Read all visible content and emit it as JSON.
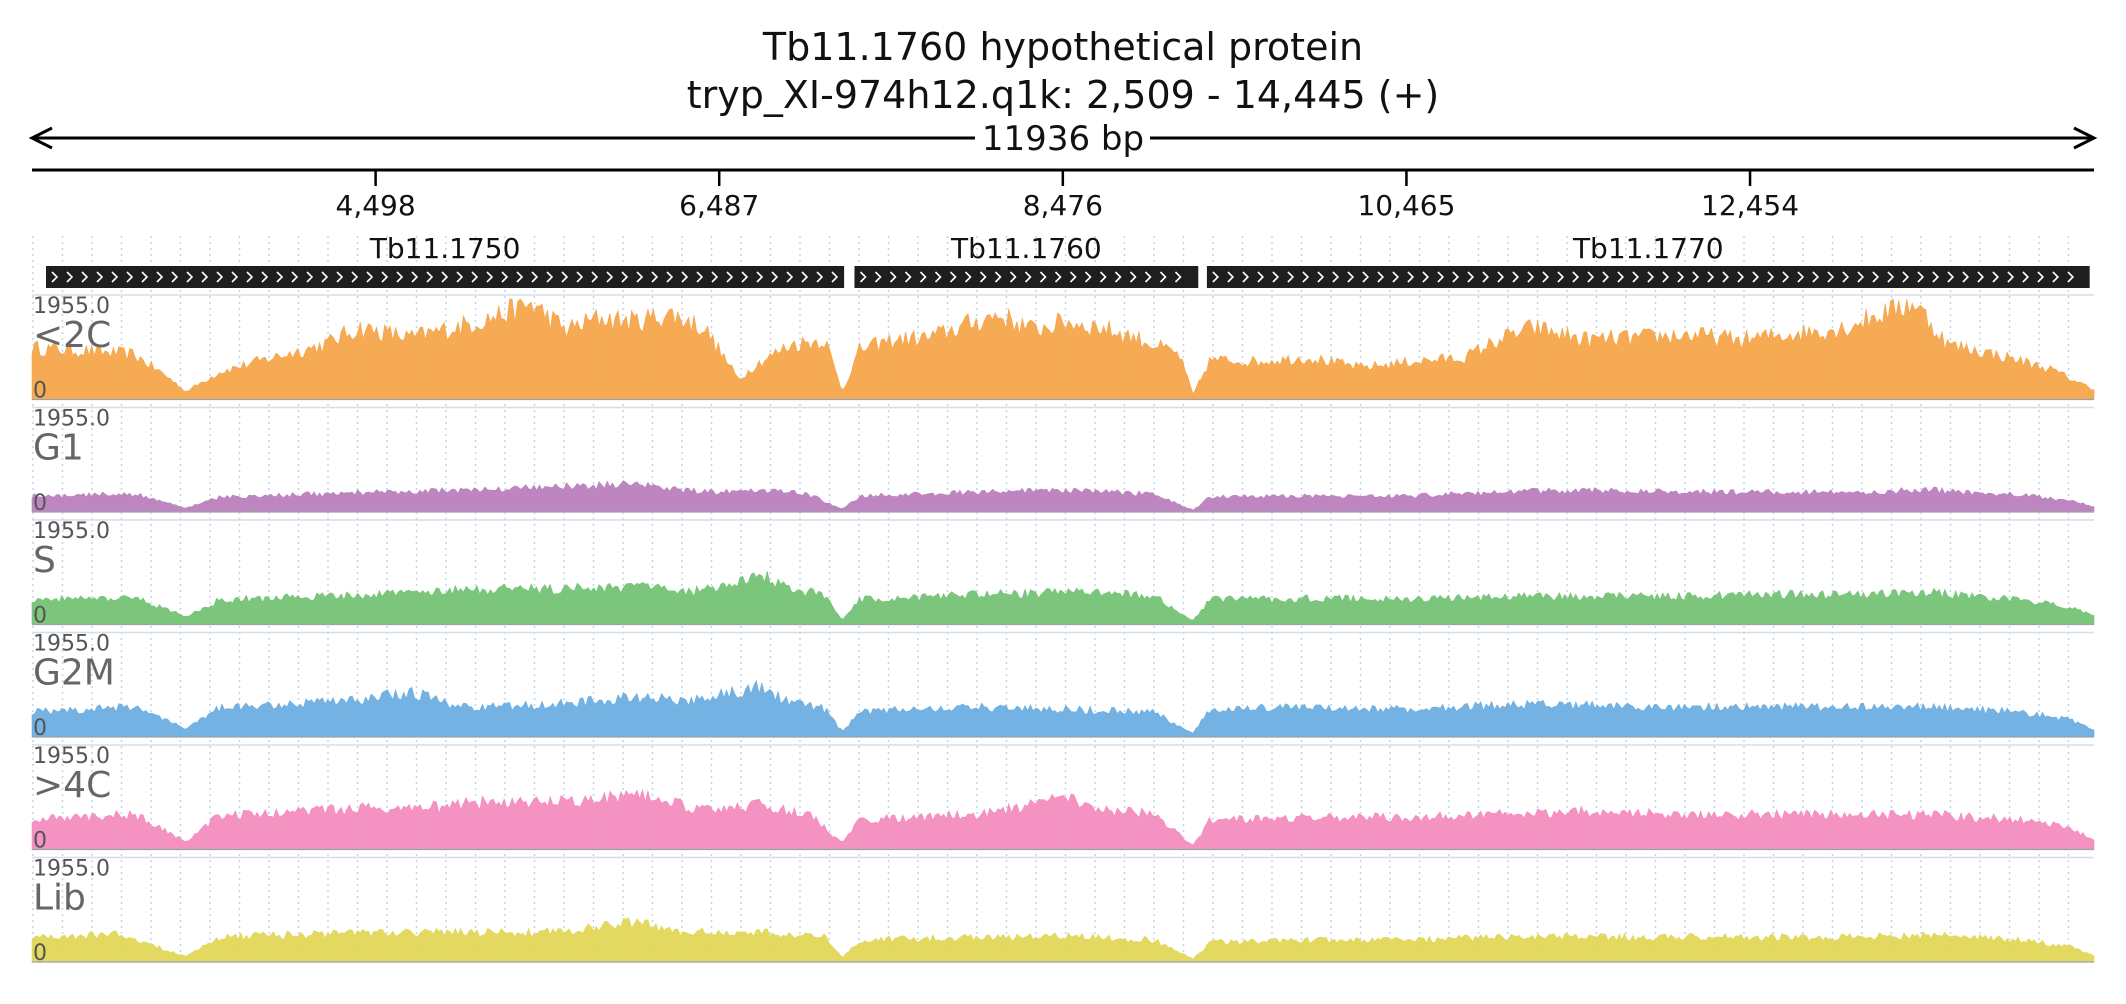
{
  "title": {
    "line1": "Tb11.1760  hypothetical protein",
    "line2": "tryp_XI-974h12.q1k: 2,509 - 14,445 (+)"
  },
  "span_label": "11936 bp",
  "axis_ticks": [
    "4,498",
    "6,487",
    "8,476",
    "10,465",
    "12,454"
  ],
  "chart_data": {
    "type": "area",
    "region": {
      "contig": "tryp_XI-974h12.q1k",
      "start": 2509,
      "end": 14445,
      "strand": "+"
    },
    "x_ticks": [
      4498,
      6487,
      8476,
      10465,
      12454
    ],
    "genes": [
      {
        "name": "Tb11.1750",
        "start": 2590,
        "end": 7210,
        "strand": "+"
      },
      {
        "name": "Tb11.1760",
        "start": 7270,
        "end": 9260,
        "strand": "+"
      },
      {
        "name": "Tb11.1770",
        "start": 9310,
        "end": 14420,
        "strand": "+"
      }
    ],
    "tracks": [
      {
        "name": "<2C",
        "ymax_label": "1955.0",
        "ymin_label": "0",
        "color": "#f5a54a",
        "profile": [
          [
            2509,
            0.52
          ],
          [
            2800,
            0.49
          ],
          [
            3100,
            0.45
          ],
          [
            3300,
            0.22
          ],
          [
            3400,
            0.08
          ],
          [
            3600,
            0.28
          ],
          [
            3900,
            0.42
          ],
          [
            4200,
            0.55
          ],
          [
            4400,
            0.72
          ],
          [
            4700,
            0.62
          ],
          [
            5000,
            0.74
          ],
          [
            5200,
            0.84
          ],
          [
            5400,
            0.96
          ],
          [
            5600,
            0.7
          ],
          [
            5800,
            0.82
          ],
          [
            6000,
            0.78
          ],
          [
            6200,
            0.86
          ],
          [
            6400,
            0.72
          ],
          [
            6600,
            0.2
          ],
          [
            6700,
            0.35
          ],
          [
            6900,
            0.55
          ],
          [
            7100,
            0.6
          ],
          [
            7200,
            0.08
          ],
          [
            7300,
            0.5
          ],
          [
            7500,
            0.6
          ],
          [
            7700,
            0.62
          ],
          [
            7900,
            0.74
          ],
          [
            8100,
            0.85
          ],
          [
            8300,
            0.7
          ],
          [
            8500,
            0.78
          ],
          [
            8700,
            0.72
          ],
          [
            8900,
            0.62
          ],
          [
            9150,
            0.45
          ],
          [
            9230,
            0.05
          ],
          [
            9330,
            0.4
          ],
          [
            9600,
            0.38
          ],
          [
            9900,
            0.42
          ],
          [
            10200,
            0.32
          ],
          [
            10500,
            0.38
          ],
          [
            10800,
            0.42
          ],
          [
            11000,
            0.6
          ],
          [
            11200,
            0.72
          ],
          [
            11500,
            0.6
          ],
          [
            11800,
            0.62
          ],
          [
            12100,
            0.65
          ],
          [
            12400,
            0.6
          ],
          [
            12700,
            0.66
          ],
          [
            13000,
            0.72
          ],
          [
            13200,
            0.85
          ],
          [
            13400,
            0.98
          ],
          [
            13600,
            0.55
          ],
          [
            13800,
            0.48
          ],
          [
            14000,
            0.4
          ],
          [
            14200,
            0.3
          ],
          [
            14445,
            0.1
          ]
        ]
      },
      {
        "name": "G1",
        "ymax_label": "1955.0",
        "ymin_label": "0",
        "color": "#bb80be",
        "profile": [
          [
            2509,
            0.16
          ],
          [
            3100,
            0.18
          ],
          [
            3400,
            0.04
          ],
          [
            3600,
            0.15
          ],
          [
            4000,
            0.17
          ],
          [
            4500,
            0.2
          ],
          [
            5000,
            0.22
          ],
          [
            5500,
            0.25
          ],
          [
            6000,
            0.28
          ],
          [
            6400,
            0.2
          ],
          [
            6700,
            0.22
          ],
          [
            7000,
            0.18
          ],
          [
            7200,
            0.03
          ],
          [
            7300,
            0.16
          ],
          [
            8000,
            0.2
          ],
          [
            8500,
            0.22
          ],
          [
            9000,
            0.18
          ],
          [
            9230,
            0.02
          ],
          [
            9330,
            0.15
          ],
          [
            10000,
            0.16
          ],
          [
            10500,
            0.16
          ],
          [
            11000,
            0.2
          ],
          [
            11500,
            0.22
          ],
          [
            12000,
            0.2
          ],
          [
            12500,
            0.2
          ],
          [
            13000,
            0.2
          ],
          [
            13500,
            0.22
          ],
          [
            14000,
            0.18
          ],
          [
            14300,
            0.12
          ],
          [
            14445,
            0.05
          ]
        ]
      },
      {
        "name": "S",
        "ymax_label": "1955.0",
        "ymin_label": "0",
        "color": "#74c375",
        "profile": [
          [
            2509,
            0.25
          ],
          [
            3100,
            0.28
          ],
          [
            3400,
            0.08
          ],
          [
            3600,
            0.25
          ],
          [
            4200,
            0.28
          ],
          [
            5000,
            0.35
          ],
          [
            5500,
            0.36
          ],
          [
            6000,
            0.38
          ],
          [
            6300,
            0.32
          ],
          [
            6600,
            0.42
          ],
          [
            6700,
            0.55
          ],
          [
            6900,
            0.35
          ],
          [
            7100,
            0.3
          ],
          [
            7200,
            0.05
          ],
          [
            7300,
            0.25
          ],
          [
            8000,
            0.3
          ],
          [
            8500,
            0.32
          ],
          [
            9000,
            0.3
          ],
          [
            9230,
            0.04
          ],
          [
            9330,
            0.25
          ],
          [
            10000,
            0.26
          ],
          [
            10500,
            0.25
          ],
          [
            11000,
            0.28
          ],
          [
            11500,
            0.28
          ],
          [
            12000,
            0.28
          ],
          [
            12500,
            0.3
          ],
          [
            13000,
            0.3
          ],
          [
            13500,
            0.32
          ],
          [
            14000,
            0.25
          ],
          [
            14300,
            0.18
          ],
          [
            14445,
            0.08
          ]
        ]
      },
      {
        "name": "G2M",
        "ymax_label": "1955.0",
        "ymin_label": "0",
        "color": "#6caee0",
        "profile": [
          [
            2509,
            0.25
          ],
          [
            3100,
            0.3
          ],
          [
            3400,
            0.08
          ],
          [
            3600,
            0.3
          ],
          [
            4000,
            0.32
          ],
          [
            4500,
            0.4
          ],
          [
            4700,
            0.45
          ],
          [
            5000,
            0.3
          ],
          [
            5500,
            0.32
          ],
          [
            6000,
            0.4
          ],
          [
            6300,
            0.36
          ],
          [
            6700,
            0.5
          ],
          [
            6900,
            0.35
          ],
          [
            7100,
            0.28
          ],
          [
            7200,
            0.05
          ],
          [
            7300,
            0.26
          ],
          [
            8000,
            0.3
          ],
          [
            8500,
            0.28
          ],
          [
            9000,
            0.25
          ],
          [
            9230,
            0.04
          ],
          [
            9330,
            0.28
          ],
          [
            10000,
            0.3
          ],
          [
            10500,
            0.28
          ],
          [
            11000,
            0.32
          ],
          [
            11500,
            0.32
          ],
          [
            12000,
            0.3
          ],
          [
            12500,
            0.3
          ],
          [
            13000,
            0.3
          ],
          [
            13500,
            0.3
          ],
          [
            14000,
            0.25
          ],
          [
            14300,
            0.18
          ],
          [
            14445,
            0.08
          ]
        ]
      },
      {
        "name": ">4C",
        "ymax_label": "1955.0",
        "ymin_label": "0",
        "color": "#f38cbf",
        "profile": [
          [
            2509,
            0.3
          ],
          [
            3100,
            0.35
          ],
          [
            3400,
            0.08
          ],
          [
            3600,
            0.35
          ],
          [
            4200,
            0.4
          ],
          [
            4800,
            0.42
          ],
          [
            5200,
            0.48
          ],
          [
            5800,
            0.5
          ],
          [
            6000,
            0.55
          ],
          [
            6400,
            0.4
          ],
          [
            6700,
            0.45
          ],
          [
            7000,
            0.36
          ],
          [
            7200,
            0.06
          ],
          [
            7300,
            0.3
          ],
          [
            8000,
            0.35
          ],
          [
            8500,
            0.52
          ],
          [
            8700,
            0.4
          ],
          [
            9000,
            0.35
          ],
          [
            9230,
            0.04
          ],
          [
            9330,
            0.3
          ],
          [
            10000,
            0.32
          ],
          [
            10500,
            0.32
          ],
          [
            11000,
            0.35
          ],
          [
            11500,
            0.38
          ],
          [
            12000,
            0.35
          ],
          [
            12500,
            0.35
          ],
          [
            13000,
            0.35
          ],
          [
            13500,
            0.35
          ],
          [
            14000,
            0.3
          ],
          [
            14300,
            0.22
          ],
          [
            14445,
            0.1
          ]
        ]
      },
      {
        "name": "Lib",
        "ymax_label": "1955.0",
        "ymin_label": "0",
        "color": "#e1d757",
        "profile": [
          [
            2509,
            0.25
          ],
          [
            3000,
            0.28
          ],
          [
            3400,
            0.06
          ],
          [
            3600,
            0.25
          ],
          [
            4200,
            0.28
          ],
          [
            5000,
            0.3
          ],
          [
            5500,
            0.3
          ],
          [
            6000,
            0.4
          ],
          [
            6300,
            0.3
          ],
          [
            6700,
            0.3
          ],
          [
            7100,
            0.25
          ],
          [
            7200,
            0.04
          ],
          [
            7300,
            0.22
          ],
          [
            8000,
            0.25
          ],
          [
            8500,
            0.26
          ],
          [
            9000,
            0.22
          ],
          [
            9230,
            0.03
          ],
          [
            9330,
            0.2
          ],
          [
            10000,
            0.22
          ],
          [
            10500,
            0.22
          ],
          [
            11000,
            0.25
          ],
          [
            11500,
            0.25
          ],
          [
            12000,
            0.25
          ],
          [
            12500,
            0.25
          ],
          [
            13000,
            0.25
          ],
          [
            13500,
            0.27
          ],
          [
            14000,
            0.22
          ],
          [
            14300,
            0.16
          ],
          [
            14445,
            0.06
          ]
        ]
      }
    ]
  }
}
